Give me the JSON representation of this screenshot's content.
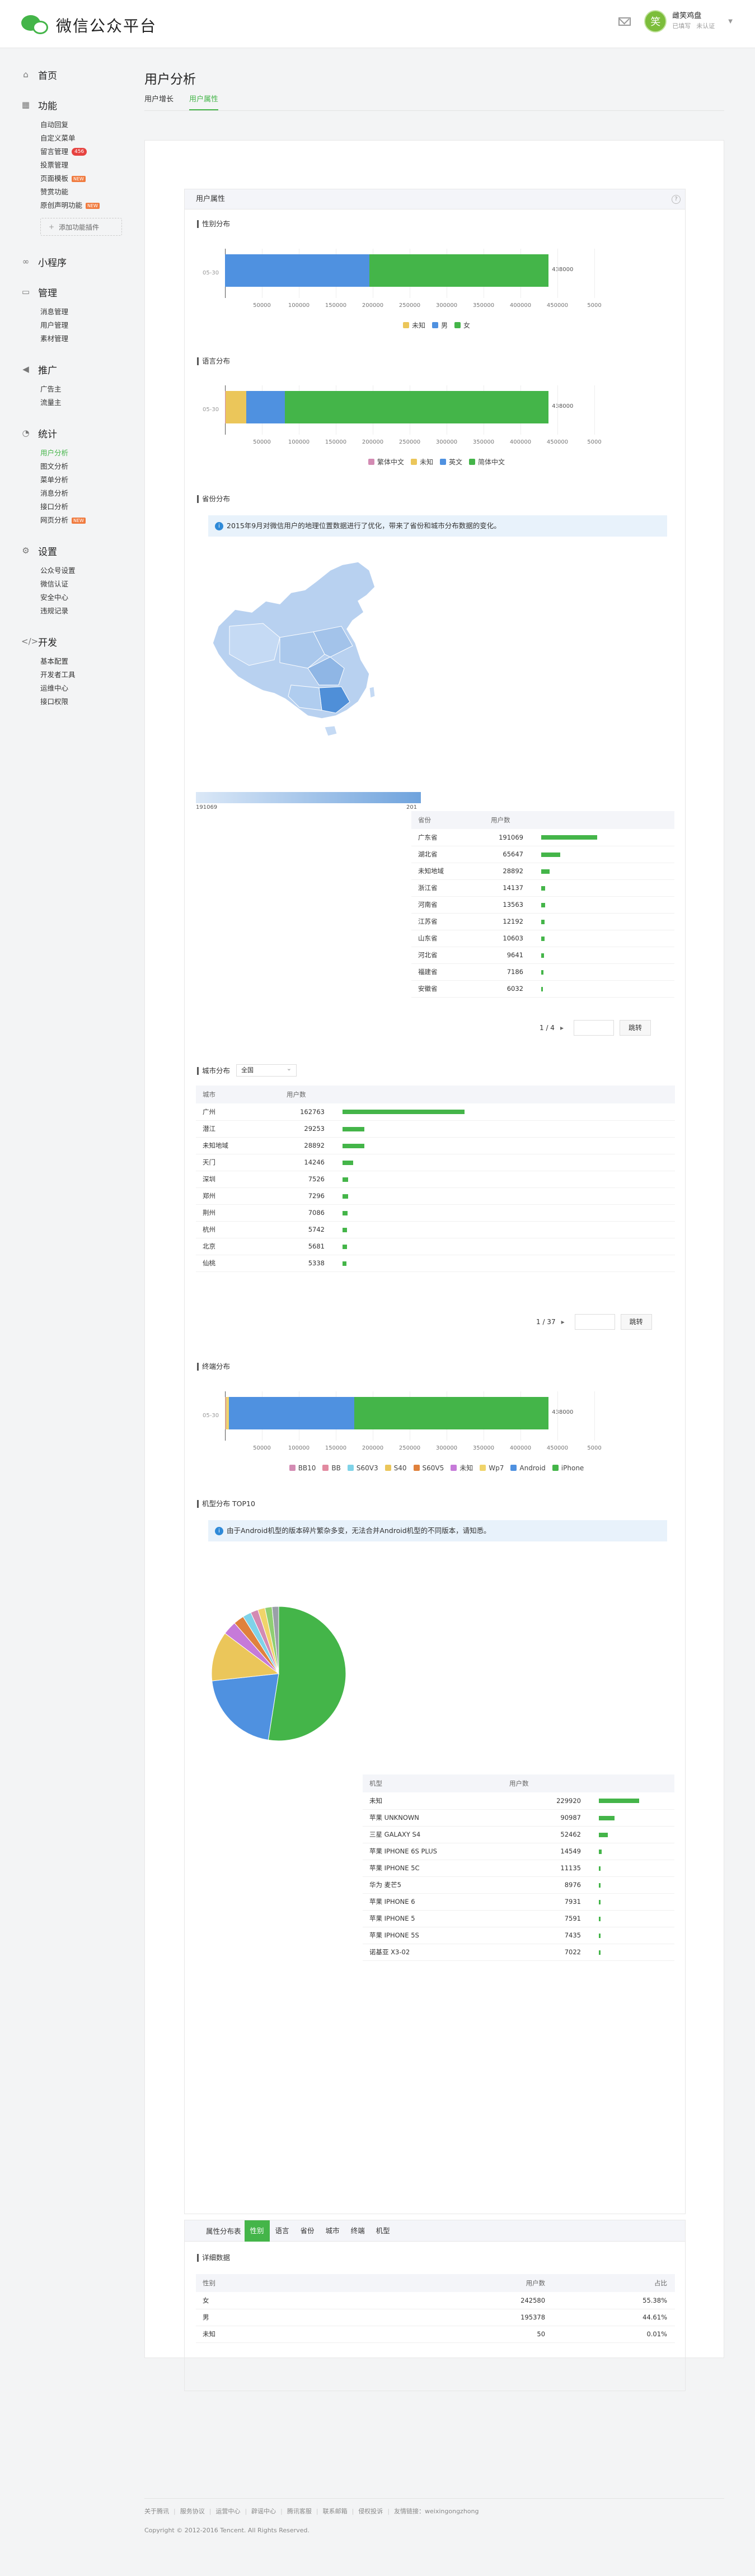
{
  "header": {
    "logo_text": "微信公众平台",
    "user_name": "雌笑鸡盘",
    "user_meta1": "已填写",
    "user_meta2": "未认证",
    "avatar_char": "笑"
  },
  "sidebar": {
    "groups": [
      {
        "title": "首页",
        "icon": "home-icon",
        "items": []
      },
      {
        "title": "功能",
        "icon": "grid-icon",
        "items": [
          "自动回复",
          "自定义菜单",
          "留言管理",
          "投票管理",
          "页面模板",
          "赞赏功能",
          "原创声明功能"
        ]
      },
      {
        "title": "小程序",
        "icon": "link-icon",
        "items": []
      },
      {
        "title": "管理",
        "icon": "folder-icon",
        "items": [
          "消息管理",
          "用户管理",
          "素材管理"
        ]
      },
      {
        "title": "推广",
        "icon": "megaphone-icon",
        "items": [
          "广告主",
          "流量主"
        ]
      },
      {
        "title": "统计",
        "icon": "chart-icon",
        "items": [
          "用户分析",
          "图文分析",
          "菜单分析",
          "消息分析",
          "接口分析",
          "网页分析"
        ]
      },
      {
        "title": "设置",
        "icon": "gear-icon",
        "items": [
          "公众号设置",
          "微信认证",
          "安全中心",
          "违规记录"
        ]
      },
      {
        "title": "开发",
        "icon": "code-icon",
        "items": [
          "基本配置",
          "开发者工具",
          "运维中心",
          "接口权限"
        ]
      }
    ],
    "add_plugin": "添加功能插件",
    "badge_new": "NEW",
    "badge_msg": "456"
  },
  "page": {
    "title": "用户分析",
    "tabs": [
      "用户增长",
      "用户属性"
    ]
  },
  "panel": {
    "title": "用户属性",
    "help": "?"
  },
  "gender": {
    "section": "性别分布",
    "ylabel": "05-30",
    "total": "438000",
    "ticks": [
      "50000",
      "100000",
      "150000",
      "200000",
      "250000",
      "300000",
      "350000",
      "400000",
      "450000",
      "5000"
    ],
    "legend": [
      {
        "name": "未知",
        "color": "#ebc65a"
      },
      {
        "name": "男",
        "color": "#4f91e0"
      },
      {
        "name": "女",
        "color": "#44b549"
      }
    ]
  },
  "language": {
    "section": "语言分布",
    "ylabel": "05-30",
    "total": "438000",
    "ticks": [
      "50000",
      "100000",
      "150000",
      "200000",
      "250000",
      "300000",
      "350000",
      "400000",
      "450000",
      "5000"
    ],
    "legend": [
      {
        "name": "繁体中文",
        "color": "#d38bb3"
      },
      {
        "name": "未知",
        "color": "#ebc65a"
      },
      {
        "name": "英文",
        "color": "#4f91e0"
      },
      {
        "name": "简体中文",
        "color": "#44b549"
      }
    ]
  },
  "province": {
    "section": "省份分布",
    "info": "2015年9月对微信用户的地理位置数据进行了优化，带来了省份和城市分布数据的变化。",
    "legend_min": "191069",
    "legend_max": "201",
    "headers": [
      "省份",
      "用户数"
    ],
    "rows": [
      [
        "广东省",
        "191069"
      ],
      [
        "湖北省",
        "65647"
      ],
      [
        "未知地域",
        "28892"
      ],
      [
        "浙江省",
        "14137"
      ],
      [
        "河南省",
        "13563"
      ],
      [
        "江苏省",
        "12192"
      ],
      [
        "山东省",
        "10603"
      ],
      [
        "河北省",
        "9641"
      ],
      [
        "福建省",
        "7186"
      ],
      [
        "安徽省",
        "6032"
      ]
    ],
    "pager": "1 / 4",
    "go": "跳转"
  },
  "city": {
    "section": "城市分布",
    "select": "全国",
    "headers": [
      "城市",
      "用户数"
    ],
    "rows": [
      [
        "广州",
        "162763"
      ],
      [
        "潜江",
        "29253"
      ],
      [
        "未知地域",
        "28892"
      ],
      [
        "天门",
        "14246"
      ],
      [
        "深圳",
        "7526"
      ],
      [
        "郑州",
        "7296"
      ],
      [
        "荆州",
        "7086"
      ],
      [
        "杭州",
        "5742"
      ],
      [
        "北京",
        "5681"
      ],
      [
        "仙桃",
        "5338"
      ]
    ],
    "pager": "1 / 37",
    "go": "跳转"
  },
  "terminal": {
    "section": "终端分布",
    "ylabel": "05-30",
    "total": "438000",
    "ticks": [
      "50000",
      "100000",
      "150000",
      "200000",
      "250000",
      "300000",
      "350000",
      "400000",
      "450000",
      "5000"
    ],
    "legend": [
      {
        "name": "BB10",
        "color": "#d38bb3"
      },
      {
        "name": "BB",
        "color": "#e28aa0"
      },
      {
        "name": "S60V3",
        "color": "#7fd3e8"
      },
      {
        "name": "S40",
        "color": "#ebc65a"
      },
      {
        "name": "S60V5",
        "color": "#e0813c"
      },
      {
        "name": "未知",
        "color": "#c67ad9"
      },
      {
        "name": "Wp7",
        "color": "#f0d46a"
      },
      {
        "name": "Android",
        "color": "#4f91e0"
      },
      {
        "name": "iPhone",
        "color": "#44b549"
      }
    ]
  },
  "device": {
    "section": "机型分布 TOP10",
    "info": "由于Android机型的版本碎片繁杂多变，无法合并Android机型的不同版本，请知悉。",
    "headers": [
      "机型",
      "用户数"
    ],
    "rows": [
      [
        "未知",
        "229920"
      ],
      [
        "苹果 UNKNOWN",
        "90987"
      ],
      [
        "三星 GALAXY S4",
        "52462"
      ],
      [
        "苹果 IPHONE 6S PLUS",
        "14549"
      ],
      [
        "苹果 IPHONE 5C",
        "11135"
      ],
      [
        "华为 麦芒5",
        "8976"
      ],
      [
        "苹果 IPHONE 6",
        "7931"
      ],
      [
        "苹果 IPHONE 5",
        "7591"
      ],
      [
        "苹果 IPHONE 5S",
        "7435"
      ],
      [
        "诺基亚 X3-02",
        "7022"
      ]
    ]
  },
  "detail": {
    "label": "属性分布表",
    "tabs": [
      "性别",
      "语言",
      "省份",
      "城市",
      "终端",
      "机型"
    ],
    "section": "详细数据",
    "headers": [
      "性别",
      "用户数",
      "占比"
    ],
    "rows": [
      [
        "女",
        "242580",
        "55.38%"
      ],
      [
        "男",
        "195378",
        "44.61%"
      ],
      [
        "未知",
        "50",
        "0.01%"
      ]
    ]
  },
  "footer": {
    "links": [
      "关于腾讯",
      "服务协议",
      "运营中心",
      "辟谣中心",
      "腾讯客服",
      "联系邮箱",
      "侵权投诉",
      "友情链接：weixingongzhong"
    ],
    "copyright": "Copyright © 2012-2016 Tencent. All Rights Reserved."
  },
  "chart_data": [
    {
      "type": "bar",
      "title": "性别分布",
      "categories": [
        "05-30"
      ],
      "series": [
        {
          "name": "未知",
          "values": [
            50
          ]
        },
        {
          "name": "男",
          "values": [
            195378
          ]
        },
        {
          "name": "女",
          "values": [
            242580
          ]
        }
      ],
      "xlim": [
        0,
        500000
      ]
    },
    {
      "type": "bar",
      "title": "语言分布",
      "categories": [
        "05-30"
      ],
      "series": [
        {
          "name": "繁体中文",
          "values": [
            800
          ]
        },
        {
          "name": "未知",
          "values": [
            28000
          ]
        },
        {
          "name": "英文",
          "values": [
            52000
          ]
        },
        {
          "name": "简体中文",
          "values": [
            357200
          ]
        }
      ],
      "xlim": [
        0,
        500000
      ]
    },
    {
      "type": "bar",
      "title": "终端分布",
      "categories": [
        "05-30"
      ],
      "series": [
        {
          "name": "BB10",
          "values": [
            100
          ]
        },
        {
          "name": "BB",
          "values": [
            100
          ]
        },
        {
          "name": "S60V3",
          "values": [
            100
          ]
        },
        {
          "name": "S40",
          "values": [
            300
          ]
        },
        {
          "name": "S60V5",
          "values": [
            100
          ]
        },
        {
          "name": "未知",
          "values": [
            500
          ]
        },
        {
          "name": "Wp7",
          "values": [
            4000
          ]
        },
        {
          "name": "Android",
          "values": [
            170000
          ]
        },
        {
          "name": "iPhone",
          "values": [
            262800
          ]
        }
      ],
      "xlim": [
        0,
        500000
      ]
    },
    {
      "type": "pie",
      "title": "机型分布 TOP10",
      "labels": [
        "未知",
        "苹果 UNKNOWN",
        "三星 GALAXY S4",
        "苹果 IPHONE 6S PLUS",
        "苹果 IPHONE 5C",
        "华为 麦芒5",
        "苹果 IPHONE 6",
        "苹果 IPHONE 5",
        "苹果 IPHONE 5S",
        "诺基亚 X3-02"
      ],
      "values": [
        229920,
        90987,
        52462,
        14549,
        11135,
        8976,
        7931,
        7591,
        7435,
        7022
      ],
      "colors": [
        "#44b549",
        "#4f91e0",
        "#ebc65a",
        "#c67ad9",
        "#e0813c",
        "#7fd3e8",
        "#d38bb3",
        "#f0d46a",
        "#8fcf72",
        "#9aa0a8"
      ]
    }
  ]
}
